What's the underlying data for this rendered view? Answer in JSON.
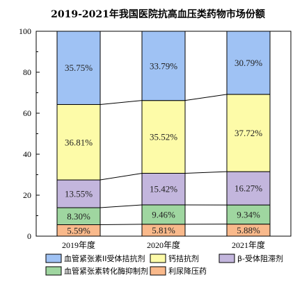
{
  "chart_data": {
    "type": "bar",
    "stacked": true,
    "title": "2019-2021年我国医院抗高血压类药物市场份额",
    "categories": [
      "2019年度",
      "2020年度",
      "2021年度"
    ],
    "ylim": [
      0,
      100
    ],
    "yticks": [
      0,
      20,
      40,
      60,
      80,
      100
    ],
    "xlabel": "",
    "ylabel": "",
    "grid": false,
    "legend_position": "bottom",
    "series": [
      {
        "name": "利尿降压药",
        "color": "#f9b98b",
        "values": [
          5.59,
          5.81,
          5.88
        ],
        "labels": [
          "5.59%",
          "5.81%",
          "5.88%"
        ]
      },
      {
        "name": "血管紧张素转化酶抑制剂",
        "color": "#9fd6a0",
        "values": [
          8.3,
          9.46,
          9.34
        ],
        "labels": [
          "8.30%",
          "9.46%",
          "9.34%"
        ]
      },
      {
        "name": "β-受体阻滞剂",
        "color": "#c3b6dd",
        "values": [
          13.55,
          15.42,
          16.27
        ],
        "labels": [
          "13.55%",
          "15.42%",
          "16.27%"
        ]
      },
      {
        "name": "钙拮抗剂",
        "color": "#fdfba8",
        "values": [
          36.81,
          35.52,
          37.72
        ],
        "labels": [
          "36.81%",
          "35.52%",
          "37.72%"
        ]
      },
      {
        "name": "血管紧张素II受体拮抗剂",
        "color": "#9fc2f4",
        "values": [
          35.75,
          33.79,
          30.79
        ],
        "labels": [
          "35.75%",
          "33.79%",
          "30.79%"
        ]
      }
    ],
    "legend_order": [
      4,
      3,
      2,
      1,
      0
    ]
  }
}
